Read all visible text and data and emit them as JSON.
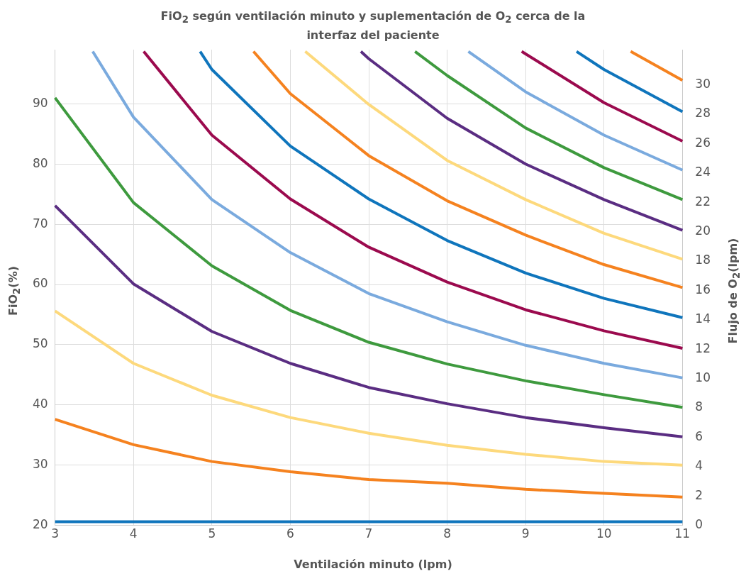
{
  "chart_data": {
    "type": "line",
    "title": "FiO$_{2}$ según ventilación minuto y suplementación de O$_{2}$ cerca de la interfaz del paciente",
    "xlabel": "Ventilación minuto (lpm)",
    "ylabel": "FiO$_{2}$(%)",
    "y2label": "Flujo de O$_{2}$(lpm)",
    "xlim": [
      3,
      11
    ],
    "xticks": [
      3,
      4,
      5,
      6,
      7,
      8,
      9,
      10,
      11
    ],
    "ylim": [
      20,
      99
    ],
    "yticks": [
      20,
      30,
      40,
      50,
      60,
      70,
      80,
      90
    ],
    "y2lim": [
      0,
      32.4
    ],
    "y2ticks": [
      0,
      2,
      4,
      6,
      8,
      10,
      12,
      14,
      16,
      18,
      20,
      22,
      24,
      26,
      28,
      30
    ],
    "grid": true,
    "legend": false,
    "marker": "none",
    "line_style": "solid",
    "x": [
      3,
      4,
      5,
      6,
      7,
      8,
      9,
      10,
      11
    ],
    "series": [
      {
        "color": "#0f75bc",
        "values": [
          20.6,
          20.6,
          20.6,
          20.6,
          20.6,
          20.6,
          20.6,
          20.6,
          20.6
        ]
      },
      {
        "color": "#f5821f",
        "values": [
          37.6,
          33.4,
          30.6,
          28.9,
          27.6,
          27.0,
          26.0,
          25.3,
          24.7
        ]
      },
      {
        "color": "#fdd97c",
        "values": [
          55.6,
          46.9,
          41.6,
          37.9,
          35.3,
          33.3,
          31.8,
          30.6,
          30.0
        ]
      },
      {
        "color": "#5a2d82",
        "values": [
          73.1,
          60.1,
          52.2,
          46.9,
          42.9,
          40.2,
          37.9,
          36.2,
          34.7
        ]
      },
      {
        "color": "#3e9a3e",
        "values": [
          91.0,
          73.6,
          63.1,
          55.7,
          50.4,
          46.8,
          44.0,
          41.7,
          39.6
        ]
      },
      {
        "color": "#7aaade",
        "x": [
          3.48,
          4,
          5,
          6,
          7,
          8,
          9,
          10,
          11
        ],
        "values": [
          98.7,
          87.8,
          74.1,
          65.3,
          58.5,
          53.8,
          49.9,
          46.9,
          44.5
        ]
      },
      {
        "color": "#9b0a4e",
        "x": [
          4.13,
          5,
          6,
          7,
          8,
          9,
          10,
          11
        ],
        "values": [
          98.7,
          84.8,
          74.2,
          66.2,
          60.4,
          55.8,
          52.3,
          49.4
        ]
      },
      {
        "color": "#0f75bc",
        "x": [
          4.85,
          5,
          6,
          7,
          8,
          9,
          10,
          11
        ],
        "values": [
          98.7,
          95.7,
          83.0,
          74.2,
          67.3,
          61.9,
          57.7,
          54.5
        ]
      },
      {
        "color": "#f5821f",
        "x": [
          5.53,
          6,
          7,
          8,
          9,
          10,
          11
        ],
        "values": [
          98.7,
          91.7,
          81.4,
          73.9,
          68.2,
          63.3,
          59.5
        ]
      },
      {
        "color": "#fdd97c",
        "x": [
          6.19,
          7,
          8,
          9,
          10,
          11
        ],
        "values": [
          98.7,
          89.9,
          80.6,
          74.1,
          68.5,
          64.2
        ]
      },
      {
        "color": "#5a2d82",
        "x": [
          6.9,
          7,
          8,
          9,
          10,
          11
        ],
        "values": [
          98.7,
          97.5,
          87.6,
          80.0,
          74.1,
          69.0
        ]
      },
      {
        "color": "#3e9a3e",
        "x": [
          7.59,
          8,
          9,
          10,
          11
        ],
        "values": [
          98.7,
          94.7,
          86.0,
          79.4,
          74.1
        ]
      },
      {
        "color": "#7aaade",
        "x": [
          8.27,
          9,
          10,
          11
        ],
        "values": [
          98.7,
          92.0,
          84.8,
          79.0
        ]
      },
      {
        "color": "#9b0a4e",
        "x": [
          8.95,
          9,
          10,
          11
        ],
        "values": [
          98.7,
          98.3,
          90.2,
          83.8
        ]
      },
      {
        "color": "#0f75bc",
        "x": [
          9.65,
          10,
          11
        ],
        "values": [
          98.7,
          95.7,
          88.7
        ]
      },
      {
        "color": "#f5821f",
        "x": [
          10.34,
          11
        ],
        "values": [
          98.7,
          93.9
        ]
      }
    ]
  }
}
